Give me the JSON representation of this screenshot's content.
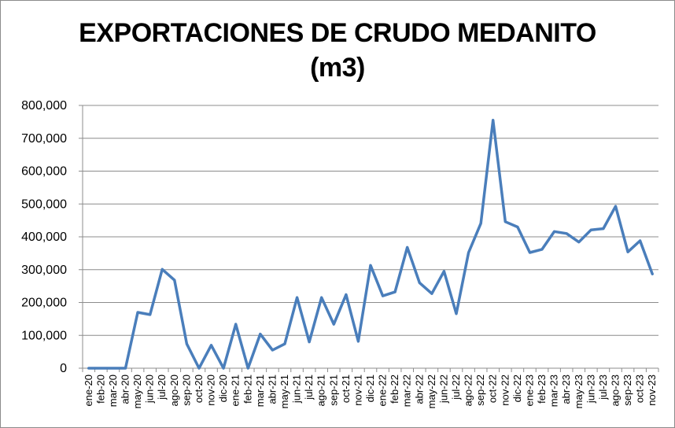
{
  "chart_data": {
    "type": "line",
    "title_line1": "EXPORTACIONES DE CRUDO MEDANITO",
    "title_line2": "(m3)",
    "xlabel": "",
    "ylabel": "",
    "ylim": [
      0,
      800000
    ],
    "yticks": [
      0,
      100000,
      200000,
      300000,
      400000,
      500000,
      600000,
      700000,
      800000
    ],
    "ytick_labels": [
      "0",
      "100,000",
      "200,000",
      "300,000",
      "400,000",
      "500,000",
      "600,000",
      "700,000",
      "800,000"
    ],
    "grid": true,
    "legend": "none",
    "line_color": "#4a7ebb",
    "categories": [
      "ene-20",
      "feb-20",
      "mar-20",
      "abr-20",
      "may-20",
      "jun-20",
      "jul-20",
      "ago-20",
      "sep-20",
      "oct-20",
      "nov-20",
      "dic-20",
      "ene-21",
      "feb-21",
      "mar-21",
      "abr-21",
      "may-21",
      "jun-21",
      "jul-21",
      "ago-21",
      "sep-21",
      "oct-21",
      "nov-21",
      "dic-21",
      "ene-22",
      "feb-22",
      "mar-22",
      "abr-22",
      "may-22",
      "jun-22",
      "jul-22",
      "ago-22",
      "sep-22",
      "oct-22",
      "nov-22",
      "dic-22",
      "ene-23",
      "feb-23",
      "mar-23",
      "abr-23",
      "may-23",
      "jun-23",
      "jul-23",
      "ago-23",
      "sep-23",
      "oct-23",
      "nov-23"
    ],
    "values": [
      0,
      0,
      0,
      0,
      170000,
      163000,
      301000,
      268000,
      74000,
      0,
      70000,
      0,
      134000,
      0,
      104000,
      55000,
      74000,
      215000,
      80000,
      215000,
      134000,
      224000,
      82000,
      313000,
      220000,
      232000,
      368000,
      260000,
      227000,
      295000,
      166000,
      352000,
      441000,
      755000,
      446000,
      430000,
      352000,
      362000,
      416000,
      410000,
      384000,
      421000,
      425000,
      493000,
      354000,
      388000,
      287000
    ]
  }
}
